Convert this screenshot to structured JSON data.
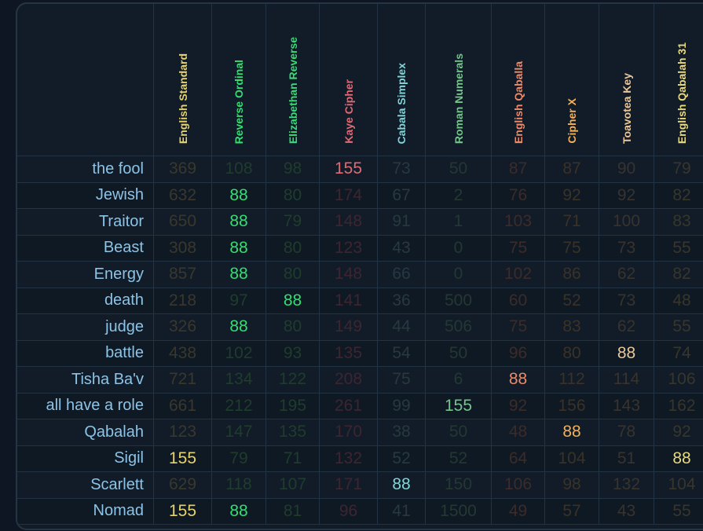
{
  "ciphers": [
    {
      "name": "English Standard",
      "color": "#e8d36a",
      "dim": "#3a372c",
      "width": 73
    },
    {
      "name": "Reverse Ordinal",
      "color": "#35dd73",
      "dim": "#1f3c2c",
      "width": 68
    },
    {
      "name": "Elizabethan Reverse",
      "color": "#35dd73",
      "dim": "#1f3c2c",
      "width": 67
    },
    {
      "name": "Kaye Cipher",
      "color": "#e06a74",
      "dim": "#3d2530",
      "width": 73
    },
    {
      "name": "Cabala Simplex",
      "color": "#7fd6d9",
      "dim": "#27393d",
      "width": 60
    },
    {
      "name": "Roman Numerals",
      "color": "#74c48c",
      "dim": "#243832",
      "width": 83
    },
    {
      "name": "English Qaballa",
      "color": "#ec8a6a",
      "dim": "#3c2b28",
      "width": 67
    },
    {
      "name": "Cipher X",
      "color": "#f2b15a",
      "dim": "#3a3226",
      "width": 68
    },
    {
      "name": "Toavotea Key",
      "color": "#e9c79a",
      "dim": "#38332d",
      "width": 69
    },
    {
      "name": "English Qabalah 31",
      "color": "#e8d97e",
      "dim": "#38362b",
      "width": 70
    }
  ],
  "rows": [
    {
      "phrase": "the fool",
      "values": [
        369,
        108,
        98,
        155,
        73,
        50,
        87,
        87,
        90,
        79
      ],
      "hl": [
        3
      ]
    },
    {
      "phrase": "Jewish",
      "values": [
        632,
        88,
        80,
        174,
        67,
        2,
        76,
        92,
        92,
        82
      ],
      "hl": [
        1
      ]
    },
    {
      "phrase": "Traitor",
      "values": [
        650,
        88,
        79,
        148,
        91,
        1,
        103,
        71,
        100,
        83
      ],
      "hl": [
        1
      ]
    },
    {
      "phrase": "Beast",
      "values": [
        308,
        88,
        80,
        123,
        43,
        0,
        75,
        75,
        73,
        55
      ],
      "hl": [
        1
      ]
    },
    {
      "phrase": "Energy",
      "values": [
        857,
        88,
        80,
        148,
        66,
        0,
        102,
        86,
        62,
        82
      ],
      "hl": [
        1
      ]
    },
    {
      "phrase": "death",
      "values": [
        218,
        97,
        88,
        141,
        36,
        500,
        60,
        52,
        73,
        48
      ],
      "hl": [
        2
      ]
    },
    {
      "phrase": "judge",
      "values": [
        326,
        88,
        80,
        149,
        44,
        506,
        75,
        83,
        62,
        55
      ],
      "hl": [
        1
      ]
    },
    {
      "phrase": "battle",
      "values": [
        438,
        102,
        93,
        135,
        54,
        50,
        96,
        80,
        88,
        74
      ],
      "hl": [
        8
      ]
    },
    {
      "phrase": "Tisha Ba'v",
      "values": [
        721,
        134,
        122,
        208,
        75,
        6,
        88,
        112,
        114,
        106
      ],
      "hl": [
        6
      ]
    },
    {
      "phrase": "all have a role",
      "values": [
        661,
        212,
        195,
        261,
        99,
        155,
        92,
        156,
        143,
        162
      ],
      "hl": [
        5
      ]
    },
    {
      "phrase": "Qabalah",
      "values": [
        123,
        147,
        135,
        170,
        38,
        50,
        48,
        88,
        78,
        92
      ],
      "hl": [
        7
      ]
    },
    {
      "phrase": "Sigil",
      "values": [
        155,
        79,
        71,
        132,
        52,
        52,
        64,
        104,
        51,
        88
      ],
      "hl": [
        0,
        9
      ]
    },
    {
      "phrase": "Scarlett",
      "values": [
        629,
        118,
        107,
        171,
        88,
        150,
        106,
        98,
        132,
        104
      ],
      "hl": [
        4
      ]
    },
    {
      "phrase": "Nomad",
      "values": [
        155,
        88,
        81,
        96,
        41,
        1500,
        49,
        57,
        43,
        55
      ],
      "hl": [
        0,
        1
      ]
    }
  ]
}
